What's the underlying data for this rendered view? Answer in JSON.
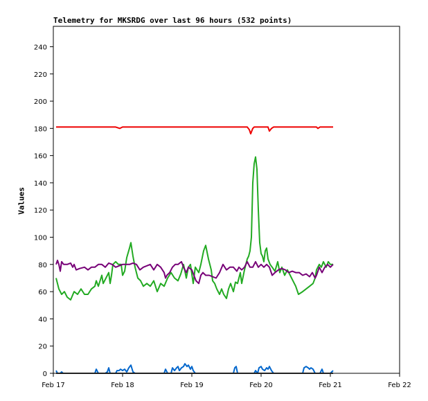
{
  "chart_data": {
    "type": "line",
    "title": "Telemetry for MKSRDG over last 96 hours (532 points)",
    "xlabel": "",
    "ylabel": "Values",
    "x_ticks": [
      "Feb 17",
      "Feb 18",
      "Feb 19",
      "Feb 20",
      "Feb 21",
      "Feb 22"
    ],
    "x_range_days": [
      0,
      5
    ],
    "y_ticks": [
      0,
      20,
      40,
      60,
      80,
      100,
      120,
      140,
      160,
      180,
      200,
      220,
      240
    ],
    "ylim": [
      0,
      255
    ],
    "grid": false,
    "legend": "none",
    "series": [
      {
        "color": "#ee0000",
        "points": [
          [
            0.04,
            181
          ],
          [
            0.9,
            181
          ],
          [
            0.96,
            180
          ],
          [
            1.0,
            181
          ],
          [
            2.8,
            181
          ],
          [
            2.83,
            179
          ],
          [
            2.85,
            176
          ],
          [
            2.88,
            180
          ],
          [
            2.9,
            181
          ],
          [
            3.1,
            181
          ],
          [
            3.12,
            178
          ],
          [
            3.15,
            180
          ],
          [
            3.18,
            181
          ],
          [
            3.8,
            181
          ],
          [
            3.82,
            180
          ],
          [
            3.85,
            181
          ],
          [
            4.04,
            181
          ]
        ]
      },
      {
        "color": "#22aa22",
        "points": [
          [
            0.04,
            70
          ],
          [
            0.08,
            62
          ],
          [
            0.12,
            58
          ],
          [
            0.16,
            60
          ],
          [
            0.2,
            56
          ],
          [
            0.25,
            54
          ],
          [
            0.3,
            60
          ],
          [
            0.35,
            58
          ],
          [
            0.4,
            62
          ],
          [
            0.45,
            58
          ],
          [
            0.5,
            58
          ],
          [
            0.55,
            62
          ],
          [
            0.6,
            64
          ],
          [
            0.62,
            68
          ],
          [
            0.65,
            64
          ],
          [
            0.7,
            72
          ],
          [
            0.72,
            66
          ],
          [
            0.76,
            70
          ],
          [
            0.8,
            74
          ],
          [
            0.82,
            66
          ],
          [
            0.84,
            72
          ],
          [
            0.86,
            80
          ],
          [
            0.9,
            82
          ],
          [
            0.94,
            80
          ],
          [
            0.98,
            80
          ],
          [
            1.0,
            72
          ],
          [
            1.03,
            75
          ],
          [
            1.06,
            85
          ],
          [
            1.1,
            92
          ],
          [
            1.12,
            96
          ],
          [
            1.15,
            86
          ],
          [
            1.18,
            78
          ],
          [
            1.22,
            70
          ],
          [
            1.26,
            68
          ],
          [
            1.3,
            64
          ],
          [
            1.35,
            66
          ],
          [
            1.4,
            64
          ],
          [
            1.45,
            68
          ],
          [
            1.5,
            60
          ],
          [
            1.55,
            66
          ],
          [
            1.6,
            64
          ],
          [
            1.65,
            70
          ],
          [
            1.7,
            74
          ],
          [
            1.75,
            70
          ],
          [
            1.8,
            68
          ],
          [
            1.84,
            73
          ],
          [
            1.88,
            80
          ],
          [
            1.92,
            70
          ],
          [
            1.95,
            78
          ],
          [
            1.98,
            80
          ],
          [
            2.02,
            66
          ],
          [
            2.05,
            78
          ],
          [
            2.1,
            74
          ],
          [
            2.13,
            80
          ],
          [
            2.17,
            90
          ],
          [
            2.2,
            94
          ],
          [
            2.24,
            84
          ],
          [
            2.28,
            76
          ],
          [
            2.3,
            68
          ],
          [
            2.33,
            66
          ],
          [
            2.36,
            62
          ],
          [
            2.4,
            58
          ],
          [
            2.43,
            62
          ],
          [
            2.46,
            58
          ],
          [
            2.5,
            55
          ],
          [
            2.53,
            62
          ],
          [
            2.56,
            66
          ],
          [
            2.6,
            60
          ],
          [
            2.63,
            67
          ],
          [
            2.66,
            66
          ],
          [
            2.7,
            74
          ],
          [
            2.72,
            66
          ],
          [
            2.76,
            76
          ],
          [
            2.78,
            80
          ],
          [
            2.8,
            84
          ],
          [
            2.82,
            86
          ],
          [
            2.84,
            90
          ],
          [
            2.86,
            100
          ],
          [
            2.88,
            140
          ],
          [
            2.9,
            154
          ],
          [
            2.92,
            159
          ],
          [
            2.94,
            150
          ],
          [
            2.96,
            120
          ],
          [
            2.98,
            96
          ],
          [
            3.0,
            88
          ],
          [
            3.02,
            86
          ],
          [
            3.04,
            82
          ],
          [
            3.06,
            90
          ],
          [
            3.08,
            92
          ],
          [
            3.1,
            84
          ],
          [
            3.13,
            80
          ],
          [
            3.16,
            78
          ],
          [
            3.2,
            75
          ],
          [
            3.24,
            82
          ],
          [
            3.27,
            74
          ],
          [
            3.3,
            78
          ],
          [
            3.34,
            72
          ],
          [
            3.38,
            76
          ],
          [
            3.42,
            72
          ],
          [
            3.46,
            68
          ],
          [
            3.5,
            64
          ],
          [
            3.54,
            58
          ],
          [
            3.6,
            60
          ],
          [
            3.65,
            62
          ],
          [
            3.7,
            64
          ],
          [
            3.75,
            66
          ],
          [
            3.78,
            70
          ],
          [
            3.8,
            76
          ],
          [
            3.84,
            80
          ],
          [
            3.87,
            78
          ],
          [
            3.9,
            82
          ],
          [
            3.94,
            78
          ],
          [
            3.97,
            82
          ],
          [
            4.0,
            80
          ],
          [
            4.04,
            80
          ]
        ]
      },
      {
        "color": "#770077",
        "points": [
          [
            0.04,
            80
          ],
          [
            0.06,
            83
          ],
          [
            0.08,
            80
          ],
          [
            0.1,
            75
          ],
          [
            0.12,
            82
          ],
          [
            0.15,
            80
          ],
          [
            0.2,
            80
          ],
          [
            0.25,
            81
          ],
          [
            0.28,
            78
          ],
          [
            0.3,
            80
          ],
          [
            0.33,
            76
          ],
          [
            0.38,
            77
          ],
          [
            0.45,
            78
          ],
          [
            0.5,
            76
          ],
          [
            0.55,
            78
          ],
          [
            0.6,
            78
          ],
          [
            0.65,
            80
          ],
          [
            0.7,
            80
          ],
          [
            0.75,
            78
          ],
          [
            0.8,
            81
          ],
          [
            0.85,
            80
          ],
          [
            0.9,
            78
          ],
          [
            1.0,
            80
          ],
          [
            1.05,
            80
          ],
          [
            1.1,
            80
          ],
          [
            1.15,
            81
          ],
          [
            1.2,
            80
          ],
          [
            1.25,
            76
          ],
          [
            1.3,
            78
          ],
          [
            1.4,
            80
          ],
          [
            1.45,
            76
          ],
          [
            1.5,
            80
          ],
          [
            1.55,
            78
          ],
          [
            1.6,
            74
          ],
          [
            1.62,
            70
          ],
          [
            1.64,
            72
          ],
          [
            1.68,
            74
          ],
          [
            1.72,
            78
          ],
          [
            1.76,
            80
          ],
          [
            1.8,
            80
          ],
          [
            1.85,
            82
          ],
          [
            1.88,
            78
          ],
          [
            1.92,
            74
          ],
          [
            1.95,
            78
          ],
          [
            2.0,
            76
          ],
          [
            2.03,
            72
          ],
          [
            2.06,
            68
          ],
          [
            2.1,
            66
          ],
          [
            2.13,
            72
          ],
          [
            2.16,
            74
          ],
          [
            2.2,
            72
          ],
          [
            2.25,
            72
          ],
          [
            2.3,
            71
          ],
          [
            2.35,
            70
          ],
          [
            2.4,
            74
          ],
          [
            2.45,
            80
          ],
          [
            2.5,
            76
          ],
          [
            2.55,
            78
          ],
          [
            2.6,
            78
          ],
          [
            2.65,
            75
          ],
          [
            2.68,
            78
          ],
          [
            2.72,
            76
          ],
          [
            2.76,
            78
          ],
          [
            2.8,
            82
          ],
          [
            2.84,
            78
          ],
          [
            2.88,
            78
          ],
          [
            2.92,
            82
          ],
          [
            2.96,
            78
          ],
          [
            3.0,
            80
          ],
          [
            3.04,
            78
          ],
          [
            3.08,
            80
          ],
          [
            3.12,
            78
          ],
          [
            3.16,
            72
          ],
          [
            3.2,
            74
          ],
          [
            3.25,
            76
          ],
          [
            3.3,
            77
          ],
          [
            3.35,
            76
          ],
          [
            3.4,
            74
          ],
          [
            3.45,
            75
          ],
          [
            3.5,
            74
          ],
          [
            3.55,
            74
          ],
          [
            3.6,
            72
          ],
          [
            3.65,
            73
          ],
          [
            3.7,
            71
          ],
          [
            3.74,
            74
          ],
          [
            3.78,
            70
          ],
          [
            3.8,
            72
          ],
          [
            3.84,
            78
          ],
          [
            3.88,
            74
          ],
          [
            3.92,
            78
          ],
          [
            3.96,
            80
          ],
          [
            4.0,
            78
          ],
          [
            4.04,
            80
          ]
        ]
      },
      {
        "color": "#0066cc",
        "points": [
          [
            0.04,
            2
          ],
          [
            0.06,
            0
          ],
          [
            0.1,
            0
          ],
          [
            0.12,
            1
          ],
          [
            0.14,
            0
          ],
          [
            0.6,
            0
          ],
          [
            0.62,
            3
          ],
          [
            0.65,
            0
          ],
          [
            0.75,
            0
          ],
          [
            0.78,
            1
          ],
          [
            0.8,
            4
          ],
          [
            0.82,
            0
          ],
          [
            0.9,
            0
          ],
          [
            0.92,
            2
          ],
          [
            0.95,
            2
          ],
          [
            0.97,
            3
          ],
          [
            1.0,
            2
          ],
          [
            1.03,
            3
          ],
          [
            1.06,
            1
          ],
          [
            1.09,
            4
          ],
          [
            1.12,
            6
          ],
          [
            1.15,
            1
          ],
          [
            1.18,
            0
          ],
          [
            1.6,
            0
          ],
          [
            1.62,
            3
          ],
          [
            1.65,
            0
          ],
          [
            1.7,
            0
          ],
          [
            1.72,
            4
          ],
          [
            1.75,
            2
          ],
          [
            1.78,
            4
          ],
          [
            1.8,
            5
          ],
          [
            1.82,
            2
          ],
          [
            1.85,
            4
          ],
          [
            1.88,
            5
          ],
          [
            1.9,
            7
          ],
          [
            1.93,
            5
          ],
          [
            1.95,
            6
          ],
          [
            1.98,
            3
          ],
          [
            2.0,
            5
          ],
          [
            2.02,
            2
          ],
          [
            2.05,
            0
          ],
          [
            2.6,
            0
          ],
          [
            2.62,
            4
          ],
          [
            2.64,
            5
          ],
          [
            2.66,
            0
          ],
          [
            2.9,
            0
          ],
          [
            2.92,
            2
          ],
          [
            2.95,
            0
          ],
          [
            2.97,
            4
          ],
          [
            3.0,
            5
          ],
          [
            3.02,
            3
          ],
          [
            3.05,
            2
          ],
          [
            3.08,
            4
          ],
          [
            3.1,
            3
          ],
          [
            3.12,
            5
          ],
          [
            3.15,
            2
          ],
          [
            3.18,
            0
          ],
          [
            3.6,
            0
          ],
          [
            3.62,
            4
          ],
          [
            3.65,
            5
          ],
          [
            3.68,
            4
          ],
          [
            3.7,
            3
          ],
          [
            3.72,
            4
          ],
          [
            3.75,
            3
          ],
          [
            3.78,
            0
          ],
          [
            3.85,
            0
          ],
          [
            3.88,
            3
          ],
          [
            3.9,
            0
          ],
          [
            4.0,
            0
          ],
          [
            4.02,
            1
          ],
          [
            4.04,
            2
          ]
        ]
      },
      {
        "color": "#222222",
        "points": [
          [
            0.04,
            0
          ],
          [
            4.04,
            0
          ]
        ]
      }
    ]
  }
}
